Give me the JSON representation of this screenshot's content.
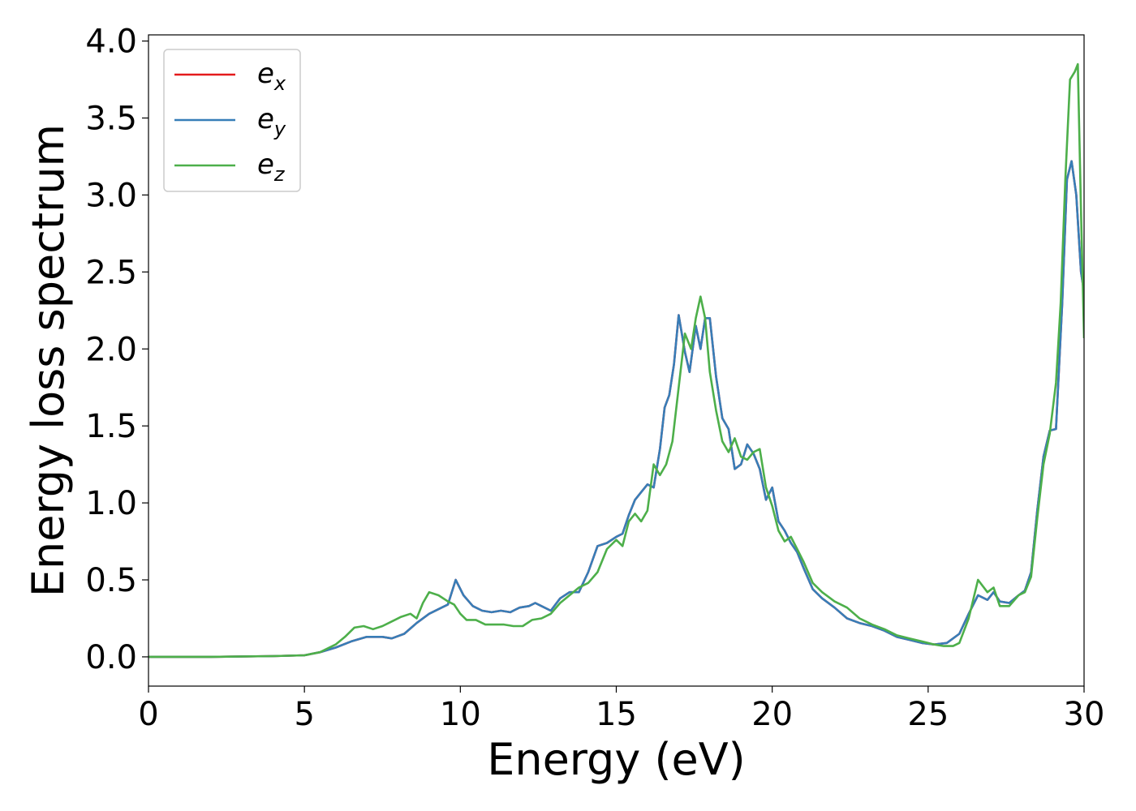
{
  "chart_data": {
    "type": "line",
    "title": "",
    "xlabel": "Energy (eV)",
    "ylabel": "Energy loss spectrum",
    "xlim": [
      0,
      30
    ],
    "ylim": [
      -0.19,
      4.04
    ],
    "xticks": [
      0,
      5,
      10,
      15,
      20,
      25,
      30
    ],
    "xtick_labels": [
      "0",
      "5",
      "10",
      "15",
      "20",
      "25",
      "30"
    ],
    "yticks": [
      0.0,
      0.5,
      1.0,
      1.5,
      2.0,
      2.5,
      3.0,
      3.5,
      4.0
    ],
    "ytick_labels": [
      "0.0",
      "0.5",
      "1.0",
      "1.5",
      "2.0",
      "2.5",
      "3.0",
      "3.5",
      "4.0"
    ],
    "grid": false,
    "legend_position": "top-left",
    "series": [
      {
        "name": "e_x",
        "base": "e",
        "sub": "x",
        "color": "#e41a1c",
        "x": [
          0,
          2,
          4,
          5,
          5.5,
          6,
          6.5,
          7,
          7.5,
          7.8,
          8.2,
          8.6,
          9,
          9.4,
          9.6,
          9.85,
          10.1,
          10.4,
          10.7,
          11,
          11.3,
          11.6,
          11.9,
          12.2,
          12.4,
          12.6,
          12.9,
          13.2,
          13.5,
          13.8,
          14.1,
          14.4,
          14.7,
          15,
          15.2,
          15.4,
          15.6,
          15.8,
          16,
          16.2,
          16.4,
          16.55,
          16.7,
          16.85,
          17,
          17.2,
          17.35,
          17.55,
          17.7,
          17.85,
          18,
          18.2,
          18.4,
          18.6,
          18.8,
          19,
          19.2,
          19.4,
          19.6,
          19.8,
          20,
          20.2,
          20.4,
          20.6,
          20.8,
          21,
          21.3,
          21.6,
          22,
          22.4,
          22.8,
          23.2,
          23.6,
          24,
          24.4,
          24.8,
          25.2,
          25.6,
          26,
          26.3,
          26.6,
          26.9,
          27.1,
          27.3,
          27.6,
          27.9,
          28.1,
          28.3,
          28.5,
          28.7,
          28.9,
          29.1,
          29.3,
          29.45,
          29.6,
          29.75,
          29.9,
          30
        ],
        "y": [
          0,
          0,
          0.005,
          0.01,
          0.03,
          0.06,
          0.1,
          0.13,
          0.13,
          0.12,
          0.15,
          0.22,
          0.28,
          0.32,
          0.34,
          0.5,
          0.4,
          0.33,
          0.3,
          0.29,
          0.3,
          0.29,
          0.32,
          0.33,
          0.35,
          0.33,
          0.3,
          0.38,
          0.42,
          0.42,
          0.55,
          0.72,
          0.74,
          0.78,
          0.8,
          0.92,
          1.02,
          1.07,
          1.12,
          1.1,
          1.35,
          1.62,
          1.7,
          1.9,
          2.22,
          1.98,
          1.85,
          2.15,
          2.0,
          2.2,
          2.2,
          1.82,
          1.55,
          1.48,
          1.22,
          1.25,
          1.38,
          1.32,
          1.22,
          1.02,
          1.1,
          0.88,
          0.82,
          0.74,
          0.68,
          0.58,
          0.44,
          0.38,
          0.32,
          0.25,
          0.22,
          0.2,
          0.17,
          0.13,
          0.11,
          0.09,
          0.08,
          0.09,
          0.15,
          0.28,
          0.4,
          0.37,
          0.42,
          0.36,
          0.35,
          0.4,
          0.43,
          0.55,
          0.95,
          1.3,
          1.47,
          1.48,
          2.3,
          3.1,
          3.22,
          3.0,
          2.5,
          2.37
        ]
      },
      {
        "name": "e_y",
        "base": "e",
        "sub": "y",
        "color": "#377eb8",
        "x": [
          0,
          2,
          4,
          5,
          5.5,
          6,
          6.5,
          7,
          7.5,
          7.8,
          8.2,
          8.6,
          9,
          9.4,
          9.6,
          9.85,
          10.1,
          10.4,
          10.7,
          11,
          11.3,
          11.6,
          11.9,
          12.2,
          12.4,
          12.6,
          12.9,
          13.2,
          13.5,
          13.8,
          14.1,
          14.4,
          14.7,
          15,
          15.2,
          15.4,
          15.6,
          15.8,
          16,
          16.2,
          16.4,
          16.55,
          16.7,
          16.85,
          17,
          17.2,
          17.35,
          17.55,
          17.7,
          17.85,
          18,
          18.2,
          18.4,
          18.6,
          18.8,
          19,
          19.2,
          19.4,
          19.6,
          19.8,
          20,
          20.2,
          20.4,
          20.6,
          20.8,
          21,
          21.3,
          21.6,
          22,
          22.4,
          22.8,
          23.2,
          23.6,
          24,
          24.4,
          24.8,
          25.2,
          25.6,
          26,
          26.3,
          26.6,
          26.9,
          27.1,
          27.3,
          27.6,
          27.9,
          28.1,
          28.3,
          28.5,
          28.7,
          28.9,
          29.1,
          29.3,
          29.45,
          29.6,
          29.75,
          29.9,
          30
        ],
        "y": [
          0,
          0,
          0.005,
          0.01,
          0.03,
          0.06,
          0.1,
          0.13,
          0.13,
          0.12,
          0.15,
          0.22,
          0.28,
          0.32,
          0.34,
          0.5,
          0.4,
          0.33,
          0.3,
          0.29,
          0.3,
          0.29,
          0.32,
          0.33,
          0.35,
          0.33,
          0.3,
          0.38,
          0.42,
          0.42,
          0.55,
          0.72,
          0.74,
          0.78,
          0.8,
          0.92,
          1.02,
          1.07,
          1.12,
          1.1,
          1.35,
          1.62,
          1.7,
          1.9,
          2.22,
          1.98,
          1.85,
          2.15,
          2.0,
          2.2,
          2.2,
          1.82,
          1.55,
          1.48,
          1.22,
          1.25,
          1.38,
          1.32,
          1.22,
          1.02,
          1.1,
          0.88,
          0.82,
          0.74,
          0.68,
          0.58,
          0.44,
          0.38,
          0.32,
          0.25,
          0.22,
          0.2,
          0.17,
          0.13,
          0.11,
          0.09,
          0.08,
          0.09,
          0.15,
          0.28,
          0.4,
          0.37,
          0.42,
          0.36,
          0.35,
          0.4,
          0.43,
          0.55,
          0.95,
          1.3,
          1.47,
          1.48,
          2.3,
          3.1,
          3.22,
          3.0,
          2.5,
          2.37
        ]
      },
      {
        "name": "e_z",
        "base": "e",
        "sub": "z",
        "color": "#4daf4a",
        "x": [
          0,
          2,
          4,
          5,
          5.5,
          6,
          6.3,
          6.6,
          6.9,
          7.2,
          7.5,
          7.8,
          8.1,
          8.4,
          8.6,
          8.8,
          9,
          9.3,
          9.6,
          9.8,
          10,
          10.2,
          10.5,
          10.8,
          11.1,
          11.4,
          11.7,
          12,
          12.3,
          12.6,
          12.9,
          13.2,
          13.5,
          13.8,
          14.1,
          14.4,
          14.7,
          15,
          15.2,
          15.4,
          15.6,
          15.8,
          16,
          16.2,
          16.4,
          16.6,
          16.8,
          17,
          17.2,
          17.4,
          17.55,
          17.7,
          17.85,
          18,
          18.2,
          18.4,
          18.6,
          18.8,
          19,
          19.2,
          19.4,
          19.6,
          19.8,
          20,
          20.2,
          20.4,
          20.6,
          20.8,
          21,
          21.3,
          21.6,
          22,
          22.4,
          22.8,
          23.2,
          23.6,
          24,
          24.4,
          24.8,
          25.2,
          25.5,
          25.8,
          26,
          26.3,
          26.6,
          26.9,
          27.1,
          27.3,
          27.6,
          27.9,
          28.1,
          28.3,
          28.5,
          28.7,
          28.9,
          29.1,
          29.25,
          29.4,
          29.55,
          29.7,
          29.8,
          29.9,
          30
        ],
        "y": [
          0,
          0,
          0.005,
          0.01,
          0.03,
          0.08,
          0.13,
          0.19,
          0.2,
          0.18,
          0.2,
          0.23,
          0.26,
          0.28,
          0.25,
          0.35,
          0.42,
          0.4,
          0.36,
          0.34,
          0.28,
          0.24,
          0.24,
          0.21,
          0.21,
          0.21,
          0.2,
          0.2,
          0.24,
          0.25,
          0.28,
          0.35,
          0.4,
          0.45,
          0.48,
          0.55,
          0.7,
          0.76,
          0.72,
          0.88,
          0.93,
          0.88,
          0.95,
          1.25,
          1.18,
          1.25,
          1.4,
          1.75,
          2.1,
          2.0,
          2.2,
          2.34,
          2.2,
          1.85,
          1.6,
          1.4,
          1.33,
          1.42,
          1.3,
          1.28,
          1.33,
          1.35,
          1.1,
          0.98,
          0.82,
          0.75,
          0.78,
          0.7,
          0.62,
          0.48,
          0.42,
          0.36,
          0.32,
          0.25,
          0.21,
          0.18,
          0.14,
          0.12,
          0.1,
          0.08,
          0.07,
          0.07,
          0.09,
          0.25,
          0.5,
          0.42,
          0.45,
          0.33,
          0.33,
          0.4,
          0.42,
          0.52,
          0.9,
          1.25,
          1.45,
          1.78,
          2.3,
          3.1,
          3.75,
          3.8,
          3.85,
          2.9,
          2.07
        ]
      }
    ]
  }
}
